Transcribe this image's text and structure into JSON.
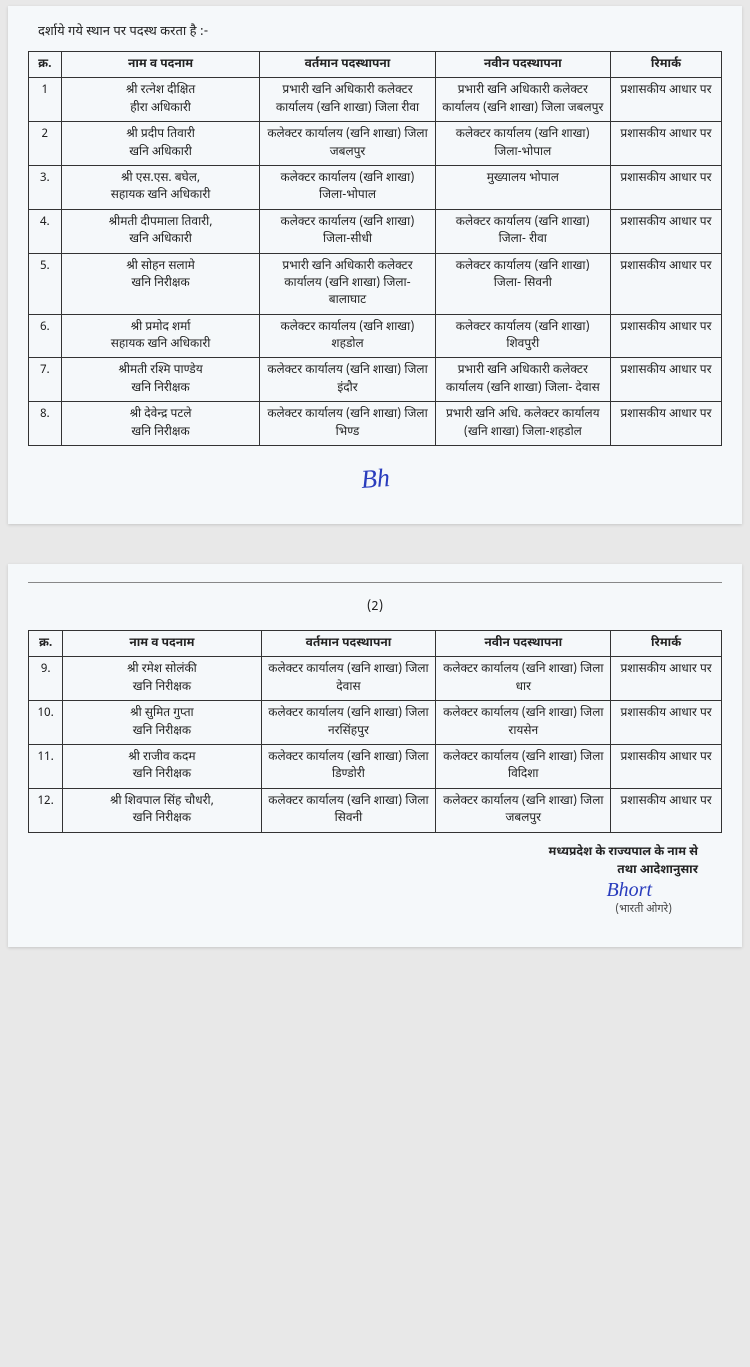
{
  "intro_text": "दर्शाये गये स्थान पर पदस्थ करता है :-",
  "page2_number": "(2)",
  "signature_initials": "Bh",
  "footer_line1": "मध्यप्रदेश के राज्यपाल के नाम से",
  "footer_line2": "तथा आदेशानुसार",
  "footer_signature": "Bhort",
  "footer_signer": "(भारती ओगरे)",
  "table": {
    "headers": {
      "sn": "क्र.",
      "name": "नाम व पदनाम",
      "current": "वर्तमान पदस्थापना",
      "new": "नवीन पदस्थापना",
      "remark": "रिमार्क"
    },
    "page1_rows": [
      {
        "sn": "1",
        "name": "श्री रत्नेश दीक्षित\nहीरा अधिकारी",
        "current": "प्रभारी खनि अधिकारी कलेक्टर कार्यालय (खनि शाखा) जिला रीवा",
        "new": "प्रभारी खनि अधिकारी कलेक्टर कार्यालय (खनि शाखा) जिला जबलपुर",
        "remark": "प्रशासकीय आधार पर"
      },
      {
        "sn": "2",
        "name": "श्री प्रदीप तिवारी\nखनि अधिकारी",
        "current": "कलेक्टर कार्यालय (खनि शाखा) जिला जबलपुर",
        "new": "कलेक्टर कार्यालय (खनि शाखा) जिला-भोपाल",
        "remark": "प्रशासकीय आधार पर"
      },
      {
        "sn": "3.",
        "name": "श्री एस.एस. बघेल,\nसहायक खनि अधिकारी",
        "current": "कलेक्टर कार्यालय (खनि शाखा) जिला-भोपाल",
        "new": "मुख्यालय भोपाल",
        "remark": "प्रशासकीय आधार पर"
      },
      {
        "sn": "4.",
        "name": "श्रीमती दीपमाला तिवारी,\nखनि अधिकारी",
        "current": "कलेक्टर कार्यालय (खनि शाखा) जिला-सीधी",
        "new": "कलेक्टर कार्यालय (खनि शाखा) जिला- रीवा",
        "remark": "प्रशासकीय आधार पर"
      },
      {
        "sn": "5.",
        "name": "श्री सोहन सलामे\nखनि निरीक्षक",
        "current": "प्रभारी खनि अधिकारी कलेक्टर कार्यालय (खनि शाखा) जिला-बालाघाट",
        "new": "कलेक्टर कार्यालय (खनि शाखा) जिला- सिवनी",
        "remark": "प्रशासकीय आधार पर"
      },
      {
        "sn": "6.",
        "name": "श्री प्रमोद शर्मा\nसहायक खनि अधिकारी",
        "current": "कलेक्टर कार्यालय (खनि शाखा) शहडोल",
        "new": "कलेक्टर कार्यालय (खनि शाखा) शिवपुरी",
        "remark": "प्रशासकीय आधार पर"
      },
      {
        "sn": "7.",
        "name": "श्रीमती रश्मि पाण्डेय\nखनि निरीक्षक",
        "current": "कलेक्टर कार्यालय (खनि शाखा) जिला इंदौर",
        "new": "प्रभारी खनि अधिकारी कलेक्टर कार्यालय (खनि शाखा) जिला- देवास",
        "remark": "प्रशासकीय आधार पर"
      },
      {
        "sn": "8.",
        "name": "श्री देवेन्द्र पटले\nखनि निरीक्षक",
        "current": "कलेक्टर कार्यालय (खनि शाखा) जिला भिण्ड",
        "new": "प्रभारी खनि अधि. कलेक्टर कार्यालय (खनि शाखा) जिला-शहडोल",
        "remark": "प्रशासकीय आधार पर"
      }
    ],
    "page2_rows": [
      {
        "sn": "9.",
        "name": "श्री रमेश सोलंकी\nखनि निरीक्षक",
        "current": "कलेक्टर कार्यालय (खनि शाखा) जिला देवास",
        "new": "कलेक्टर कार्यालय (खनि शाखा) जिला धार",
        "remark": "प्रशासकीय आधार पर"
      },
      {
        "sn": "10.",
        "name": "श्री सुमित गुप्ता\nखनि निरीक्षक",
        "current": "कलेक्टर कार्यालय (खनि शाखा) जिला नरसिंहपुर",
        "new": "कलेक्टर कार्यालय (खनि शाखा) जिला रायसेन",
        "remark": "प्रशासकीय आधार पर"
      },
      {
        "sn": "11.",
        "name": "श्री राजीव कदम\nखनि निरीक्षक",
        "current": "कलेक्टर कार्यालय (खनि शाखा) जिला डिण्डोरी",
        "new": "कलेक्टर कार्यालय (खनि शाखा) जिला विदिशा",
        "remark": "प्रशासकीय आधार पर"
      },
      {
        "sn": "12.",
        "name": "श्री शिवपाल सिंह चौधरी,\nखनि निरीक्षक",
        "current": "कलेक्टर कार्यालय (खनि शाखा) जिला सिवनी",
        "new": "कलेक्टर कार्यालय (खनि शाखा) जिला जबलपुर",
        "remark": "प्रशासकीय आधार पर"
      }
    ]
  }
}
